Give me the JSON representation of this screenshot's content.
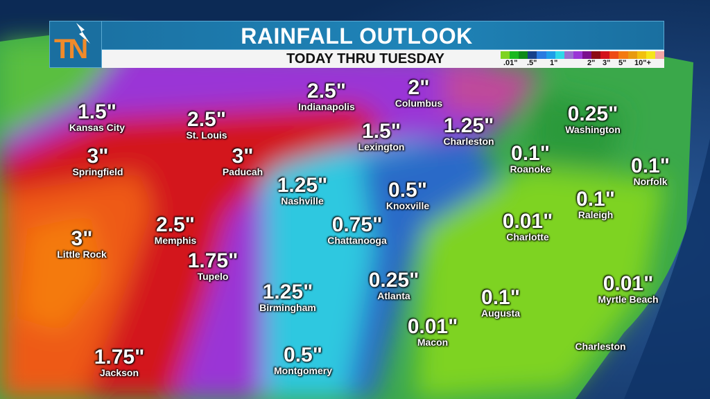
{
  "header": {
    "title": "RAINFALL OUTLOOK",
    "subtitle": "TODAY THRU TUESDAY",
    "logo_text": "TN"
  },
  "legend": {
    "colors": [
      "#7ed321",
      "#19b81e",
      "#0e8a1a",
      "#16418a",
      "#2a7be0",
      "#1f9ee8",
      "#2fd8e8",
      "#9a6fd0",
      "#9a36d6",
      "#7b0f8e",
      "#8c0a14",
      "#d3121a",
      "#ee4a14",
      "#f47a10",
      "#e89a10",
      "#f2c010",
      "#f5e51a",
      "#f3a4a4"
    ],
    "ticks": [
      ".01\"",
      ".5\"",
      "1\"",
      "2\"",
      "3\"",
      "5\"",
      "10\"+"
    ]
  },
  "labels": [
    {
      "value": "1.5\"",
      "city": "Kansas City"
    },
    {
      "value": "2.5\"",
      "city": "St. Louis"
    },
    {
      "value": "3\"",
      "city": "Springfield"
    },
    {
      "value": "3\"",
      "city": "Paducah"
    },
    {
      "value": "2.5\"",
      "city": "Indianapolis"
    },
    {
      "value": "2\"",
      "city": "Columbus"
    },
    {
      "value": "1.5\"",
      "city": "Lexington"
    },
    {
      "value": "1.25\"",
      "city": "Charleston"
    },
    {
      "value": "0.25\"",
      "city": "Washington"
    },
    {
      "value": "0.1\"",
      "city": "Roanoke"
    },
    {
      "value": "0.1\"",
      "city": "Norfolk"
    },
    {
      "value": "1.25\"",
      "city": "Nashville"
    },
    {
      "value": "0.5\"",
      "city": "Knoxville"
    },
    {
      "value": "0.1\"",
      "city": "Raleigh"
    },
    {
      "value": "0.01\"",
      "city": "Charlotte"
    },
    {
      "value": "0.75\"",
      "city": "Chattanooga"
    },
    {
      "value": "3\"",
      "city": "Little Rock"
    },
    {
      "value": "2.5\"",
      "city": "Memphis"
    },
    {
      "value": "1.75\"",
      "city": "Tupelo"
    },
    {
      "value": "1.25\"",
      "city": "Birmingham"
    },
    {
      "value": "0.25\"",
      "city": "Atlanta"
    },
    {
      "value": "0.1\"",
      "city": "Augusta"
    },
    {
      "value": "0.01\"",
      "city": "Myrtle Beach"
    },
    {
      "value": "0.01\"",
      "city": "Macon"
    },
    {
      "value": "",
      "city": "Charleston"
    },
    {
      "value": "1.75\"",
      "city": "Jackson"
    },
    {
      "value": "0.5\"",
      "city": "Montgomery"
    }
  ]
}
